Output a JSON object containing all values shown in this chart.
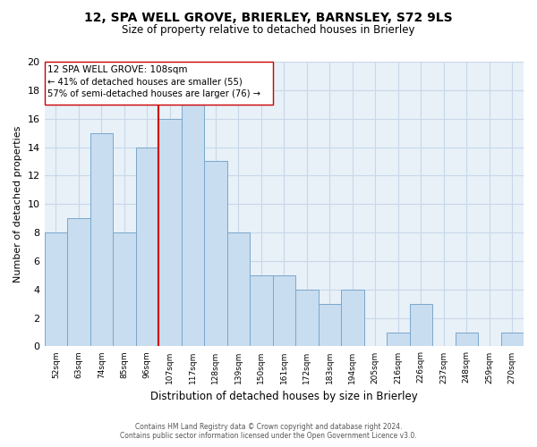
{
  "title": "12, SPA WELL GROVE, BRIERLEY, BARNSLEY, S72 9LS",
  "subtitle": "Size of property relative to detached houses in Brierley",
  "xlabel": "Distribution of detached houses by size in Brierley",
  "ylabel": "Number of detached properties",
  "categories": [
    "52sqm",
    "63sqm",
    "74sqm",
    "85sqm",
    "96sqm",
    "107sqm",
    "117sqm",
    "128sqm",
    "139sqm",
    "150sqm",
    "161sqm",
    "172sqm",
    "183sqm",
    "194sqm",
    "205sqm",
    "216sqm",
    "226sqm",
    "237sqm",
    "248sqm",
    "259sqm",
    "270sqm"
  ],
  "values": [
    8,
    9,
    15,
    8,
    14,
    16,
    17,
    13,
    8,
    5,
    5,
    4,
    3,
    4,
    0,
    1,
    3,
    0,
    1,
    0,
    1
  ],
  "bar_color": "#c8ddf0",
  "bar_edge_color": "#7aa8cc",
  "vline_x_index": 5,
  "vline_color": "#cc0000",
  "annotation_title": "12 SPA WELL GROVE: 108sqm",
  "annotation_line1": "← 41% of detached houses are smaller (55)",
  "annotation_line2": "57% of semi-detached houses are larger (76) →",
  "ylim": [
    0,
    20
  ],
  "yticks": [
    0,
    2,
    4,
    6,
    8,
    10,
    12,
    14,
    16,
    18,
    20
  ],
  "grid_color": "#c8d8e8",
  "background_color": "#e8f0f8",
  "footer_line1": "Contains HM Land Registry data © Crown copyright and database right 2024.",
  "footer_line2": "Contains public sector information licensed under the Open Government Licence v3.0."
}
